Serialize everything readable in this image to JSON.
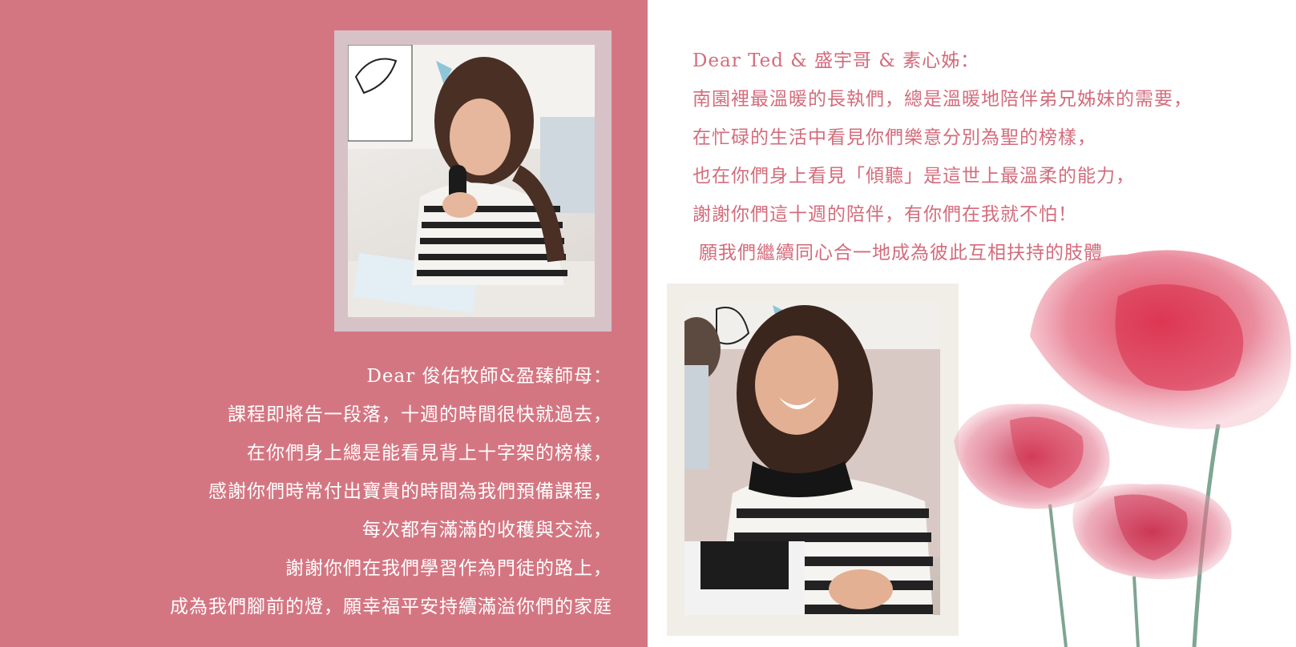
{
  "left_letter": {
    "greeting": "Dear 俊佑牧師&盈臻師母：",
    "lines": [
      "課程即將告一段落，十週的時間很快就過去，",
      "在你們身上總是能看見背上十字架的榜樣，",
      "感謝你們時常付出寶貴的時間為我們預備課程，",
      "每次都有滿滿的收穫與交流，",
      "謝謝你們在我們學習作為門徒的路上，",
      "成為我們腳前的燈，願幸福平安持續滿溢你們的家庭"
    ]
  },
  "right_letter": {
    "greeting": "Dear Ted & 盛宇哥 & 素心姊：",
    "lines": [
      "南園裡最溫暖的長執們，總是溫暖地陪伴弟兄姊妹的需要，",
      "在忙碌的生活中看見你們樂意分別為聖的榜樣，",
      "也在你們身上看見「傾聽」是這世上最溫柔的能力，",
      "謝謝你們這十週的陪伴，有你們在我就不怕！",
      "願我們繼續同心合一地成為彼此互相扶持的肢體"
    ]
  },
  "colors": {
    "left_background": "#d47682",
    "right_text": "#d36c7c",
    "left_text": "#ffffff",
    "photo1_frame": "#d7c2c8",
    "photo2_frame": "#f0eee6",
    "flower": "#d9435a"
  }
}
